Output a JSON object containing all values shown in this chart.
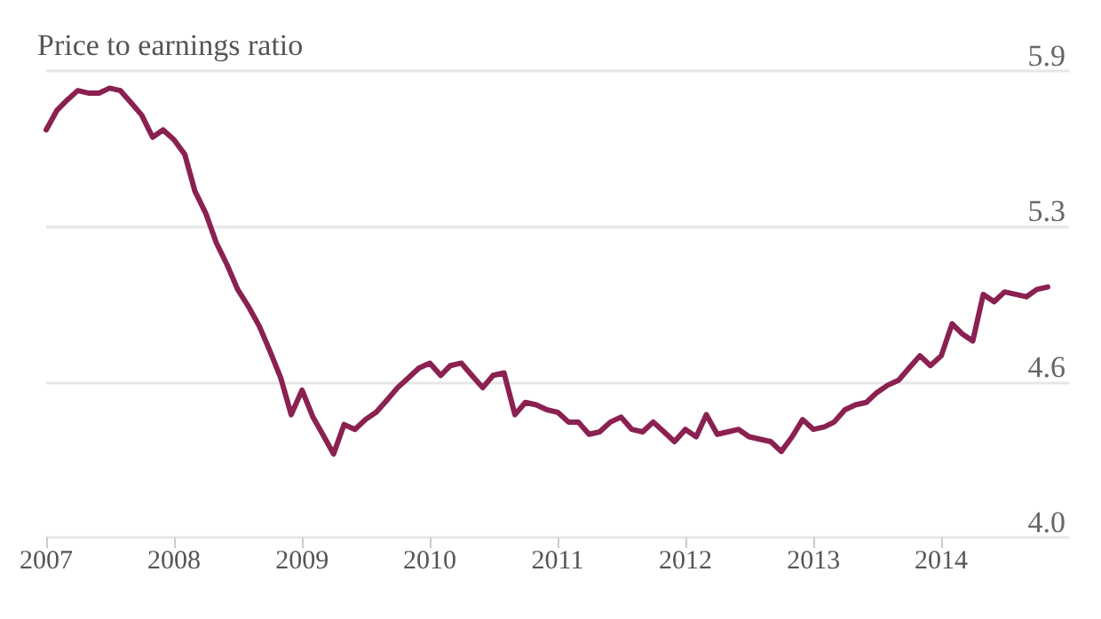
{
  "chart_data": {
    "type": "line",
    "title": "Price to earnings ratio",
    "x": [
      "2007-01",
      "2007-02",
      "2007-03",
      "2007-04",
      "2007-05",
      "2007-06",
      "2007-07",
      "2007-08",
      "2007-09",
      "2007-10",
      "2007-11",
      "2007-12",
      "2008-01",
      "2008-02",
      "2008-03",
      "2008-04",
      "2008-05",
      "2008-06",
      "2008-07",
      "2008-08",
      "2008-09",
      "2008-10",
      "2008-11",
      "2008-12",
      "2009-01",
      "2009-02",
      "2009-03",
      "2009-04",
      "2009-05",
      "2009-06",
      "2009-07",
      "2009-08",
      "2009-09",
      "2009-10",
      "2009-11",
      "2009-12",
      "2010-01",
      "2010-02",
      "2010-03",
      "2010-04",
      "2010-05",
      "2010-06",
      "2010-07",
      "2010-08",
      "2010-09",
      "2010-10",
      "2010-11",
      "2010-12",
      "2011-01",
      "2011-02",
      "2011-03",
      "2011-04",
      "2011-05",
      "2011-06",
      "2011-07",
      "2011-08",
      "2011-09",
      "2011-10",
      "2011-11",
      "2011-12",
      "2012-01",
      "2012-02",
      "2012-03",
      "2012-04",
      "2012-05",
      "2012-06",
      "2012-07",
      "2012-08",
      "2012-09",
      "2012-10",
      "2012-11",
      "2012-12",
      "2013-01",
      "2013-02",
      "2013-03",
      "2013-04",
      "2013-05",
      "2013-06",
      "2013-07",
      "2013-08",
      "2013-09",
      "2013-10",
      "2013-11",
      "2013-12",
      "2014-01",
      "2014-02",
      "2014-03",
      "2014-04",
      "2014-05",
      "2014-06",
      "2014-07",
      "2014-08",
      "2014-09",
      "2014-10",
      "2014-11"
    ],
    "series": [
      {
        "color": "#8a2151",
        "values": [
          5.66,
          5.74,
          5.78,
          5.82,
          5.81,
          5.81,
          5.83,
          5.82,
          5.77,
          5.72,
          5.63,
          5.66,
          5.62,
          5.56,
          5.41,
          5.32,
          5.2,
          5.11,
          5.01,
          4.94,
          4.86,
          4.76,
          4.65,
          4.5,
          4.6,
          4.49,
          4.42,
          4.34,
          4.46,
          4.44,
          4.48,
          4.51,
          4.56,
          4.61,
          4.65,
          4.69,
          4.71,
          4.66,
          4.7,
          4.71,
          4.66,
          4.61,
          4.66,
          4.67,
          4.5,
          4.55,
          4.54,
          4.52,
          4.51,
          4.47,
          4.47,
          4.42,
          4.43,
          4.47,
          4.49,
          4.44,
          4.43,
          4.47,
          4.43,
          4.39,
          4.44,
          4.41,
          4.5,
          4.42,
          4.43,
          4.44,
          4.41,
          4.4,
          4.39,
          4.35,
          4.41,
          4.48,
          4.44,
          4.45,
          4.47,
          4.52,
          4.54,
          4.55,
          4.59,
          4.62,
          4.64,
          4.69,
          4.74,
          4.7,
          4.74,
          4.87,
          4.83,
          4.8,
          4.99,
          4.96,
          5.0,
          4.99,
          4.98,
          5.01,
          5.02
        ]
      }
    ],
    "xlim": [
      "2007-01",
      "2015-01"
    ],
    "xticks": [
      "2007",
      "2008",
      "2009",
      "2010",
      "2011",
      "2012",
      "2013",
      "2014"
    ],
    "ylim": [
      4.0,
      5.9
    ],
    "yticks": [
      {
        "value": 4.0,
        "label": "4.0"
      },
      {
        "value": 4.6333,
        "label": "4.6"
      },
      {
        "value": 5.2667,
        "label": "5.3"
      },
      5.9
    ],
    "grid": "y",
    "marker": "none",
    "line_style": "solid"
  }
}
